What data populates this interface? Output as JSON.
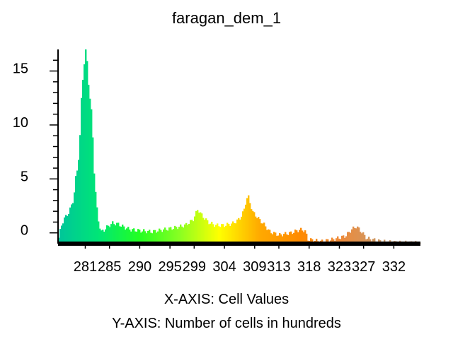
{
  "chart_data": {
    "type": "bar",
    "title": "faragan_dem_1",
    "xlabel": "X-AXIS: Cell Values",
    "ylabel": "Y-AXIS: Number of cells in hundreds",
    "x_tick_labels": [
      "281",
      "285",
      "290",
      "295",
      "299",
      "304",
      "309",
      "313",
      "318",
      "323",
      "327",
      "332"
    ],
    "x_tick_values": [
      281,
      285,
      290,
      295,
      299,
      304,
      309,
      313,
      318,
      323,
      327,
      332
    ],
    "y_tick_labels": [
      "0",
      "5",
      "10",
      "15"
    ],
    "y_tick_values": [
      0,
      5,
      10,
      15
    ],
    "xlim": [
      276.5,
      336.4
    ],
    "ylim": [
      -1.0,
      17.0
    ],
    "grid": false,
    "legend": "none",
    "colormap": [
      "#00c59a",
      "#00e676",
      "#22ff22",
      "#88ff22",
      "#ffff00",
      "#ffaa00",
      "#ff8a00",
      "#ee8a3a",
      "#cc9966",
      "#d4b090"
    ],
    "anchors": [
      [
        276.6,
        -0.5
      ],
      [
        277.0,
        0.6
      ],
      [
        277.5,
        1.3
      ],
      [
        278.3,
        1.9
      ],
      [
        279.0,
        3.0
      ],
      [
        279.7,
        6.0
      ],
      [
        280.1,
        8.5
      ],
      [
        280.3,
        11.5
      ],
      [
        280.6,
        14.5
      ],
      [
        280.9,
        16.4
      ],
      [
        281.1,
        17.0
      ],
      [
        281.4,
        15.0
      ],
      [
        281.7,
        13.0
      ],
      [
        282.0,
        11.0
      ],
      [
        282.3,
        8.2
      ],
      [
        282.5,
        5.5
      ],
      [
        282.8,
        2.8
      ],
      [
        283.2,
        1.0
      ],
      [
        283.6,
        0.1
      ],
      [
        284.0,
        0.2
      ],
      [
        284.5,
        0.5
      ],
      [
        285.5,
        0.9
      ],
      [
        286.5,
        0.8
      ],
      [
        287.5,
        0.5
      ],
      [
        288.5,
        0.3
      ],
      [
        290,
        0.2
      ],
      [
        292,
        0.1
      ],
      [
        294,
        0.3
      ],
      [
        296,
        0.5
      ],
      [
        297.5,
        0.7
      ],
      [
        298.8,
        1.2
      ],
      [
        299.6,
        2.2
      ],
      [
        300.3,
        1.6
      ],
      [
        301.3,
        1.0
      ],
      [
        302.5,
        0.7
      ],
      [
        304,
        0.7
      ],
      [
        305.5,
        0.9
      ],
      [
        306.5,
        1.3
      ],
      [
        307.2,
        2.0
      ],
      [
        307.7,
        3.3
      ],
      [
        308.2,
        2.8
      ],
      [
        308.7,
        1.9
      ],
      [
        309.5,
        1.4
      ],
      [
        310.5,
        0.8
      ],
      [
        311.5,
        0.1
      ],
      [
        313,
        -0.2
      ],
      [
        315,
        0.0
      ],
      [
        316.5,
        0.3
      ],
      [
        317.3,
        0.2
      ],
      [
        317.8,
        -0.6
      ],
      [
        320,
        -0.8
      ],
      [
        322,
        -0.6
      ],
      [
        324,
        -0.3
      ],
      [
        325,
        0.3
      ],
      [
        325.8,
        0.6
      ],
      [
        326.5,
        0.2
      ],
      [
        327.5,
        -0.5
      ],
      [
        330,
        -0.8
      ],
      [
        333,
        -0.9
      ],
      [
        336.3,
        -0.9
      ]
    ]
  }
}
